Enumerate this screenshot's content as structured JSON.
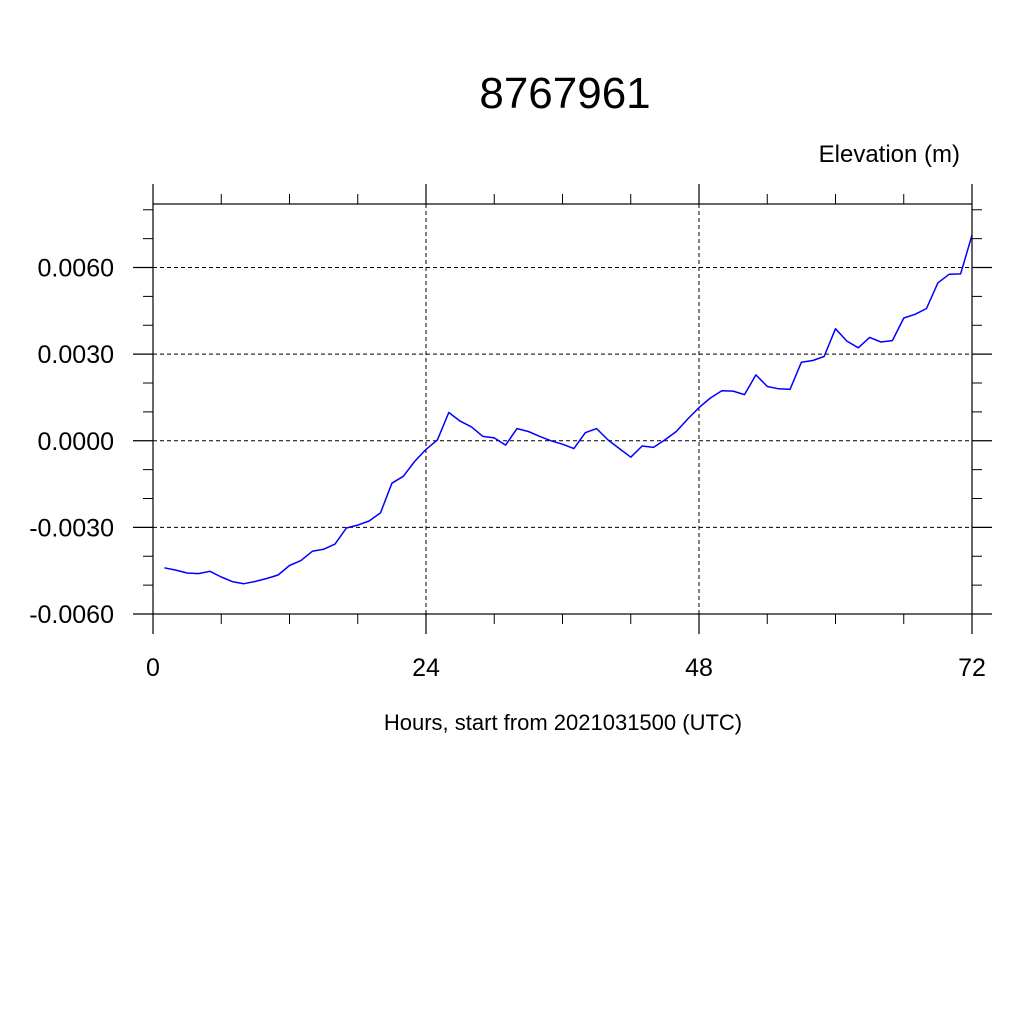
{
  "chart_data": {
    "type": "line",
    "title": "8767961",
    "ylabel": "Elevation (m)",
    "xlabel": "Hours, start from 2021031500 (UTC)",
    "xlim": [
      0,
      72
    ],
    "ylim": [
      -0.006,
      0.0082
    ],
    "grid": true,
    "x_ticks": [
      0,
      24,
      48,
      72
    ],
    "x_tick_labels": [
      "0",
      "24",
      "48",
      "72"
    ],
    "y_ticks": [
      -0.006,
      -0.003,
      0.0,
      0.003,
      0.006
    ],
    "y_tick_labels": [
      "-0.0060",
      "-0.0030",
      "0.0000",
      "0.0030",
      "0.0060"
    ],
    "series": [
      {
        "color": "#0000ff",
        "x": [
          1,
          2,
          3,
          4,
          5,
          6,
          7,
          8,
          9,
          10,
          11,
          12,
          13,
          14,
          15,
          16,
          17,
          18,
          19,
          20,
          21,
          22,
          23,
          24,
          25,
          26,
          27,
          28,
          29,
          30,
          31,
          32,
          33,
          34,
          35,
          36,
          37,
          38,
          39,
          40,
          41,
          42,
          43,
          44,
          45,
          46,
          47,
          48,
          49,
          50,
          51,
          52,
          53,
          54,
          55,
          56,
          57,
          58,
          59,
          60,
          61,
          62,
          63,
          64,
          65,
          66,
          67,
          68,
          69,
          70,
          71,
          72
        ],
        "y": [
          -0.0044,
          -0.00448,
          -0.00458,
          -0.0046,
          -0.00452,
          -0.00472,
          -0.00488,
          -0.00495,
          -0.00487,
          -0.00477,
          -0.00465,
          -0.00432,
          -0.00415,
          -0.00383,
          -0.00376,
          -0.00358,
          -0.00302,
          -0.00292,
          -0.00278,
          -0.0025,
          -0.00147,
          -0.00123,
          -0.00072,
          -0.0003,
          3e-05,
          0.00098,
          0.00068,
          0.00048,
          0.00015,
          0.0001,
          -0.00015,
          0.00042,
          0.00032,
          0.00015,
          0.0,
          -0.00012,
          -0.00027,
          0.00028,
          0.00042,
          3e-05,
          -0.00027,
          -0.00057,
          -0.00018,
          -0.00023,
          3e-05,
          0.00032,
          0.00075,
          0.00115,
          0.00148,
          0.00173,
          0.00172,
          0.0016,
          0.00228,
          0.00188,
          0.0018,
          0.00178,
          0.00272,
          0.00278,
          0.00292,
          0.00388,
          0.00345,
          0.00322,
          0.00358,
          0.00342,
          0.00347,
          0.00425,
          0.00438,
          0.00458,
          0.00547,
          0.00577,
          0.00578,
          0.00712
        ]
      }
    ]
  }
}
